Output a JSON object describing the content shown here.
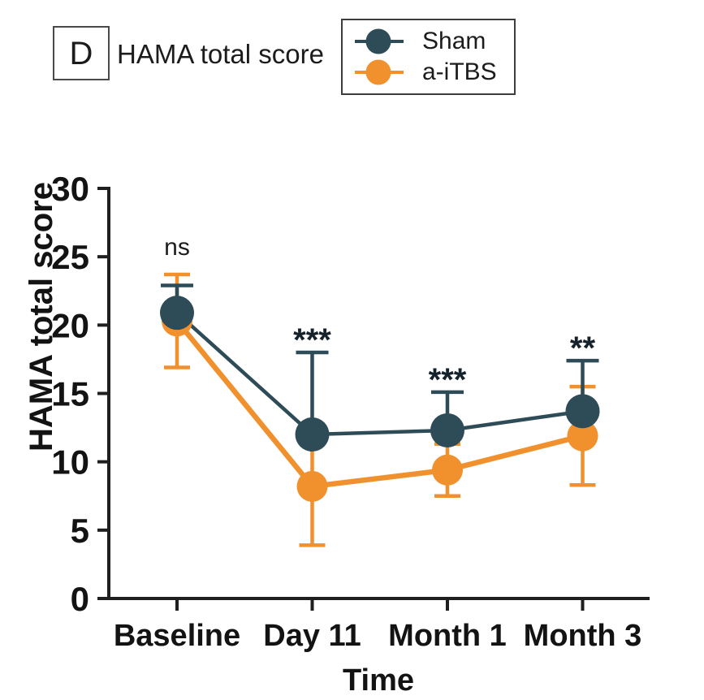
{
  "panel": {
    "label": "D",
    "title": "HAMA total score"
  },
  "legend": {
    "position": "top-right",
    "items": [
      {
        "name": "Sham",
        "color": "#2E4C58"
      },
      {
        "name": "a-iTBS",
        "color": "#F0912E"
      }
    ]
  },
  "colors": {
    "sham": "#2E4C58",
    "aitbs": "#F0912E",
    "axis": "#1f1f1f",
    "text": "#131313"
  },
  "chart_data": {
    "type": "line",
    "title": "HAMA total score",
    "xlabel": "Time",
    "ylabel": "HAMA  total score",
    "categories": [
      "Baseline",
      "Day 11",
      "Month 1",
      "Month 3"
    ],
    "yticks": [
      0,
      5,
      10,
      15,
      20,
      25,
      30
    ],
    "ylim": [
      0,
      30
    ],
    "grid": false,
    "legend_position": "top",
    "series": [
      {
        "name": "Sham",
        "color": "#2E4C58",
        "values": [
          20.9,
          12.0,
          12.3,
          13.7
        ],
        "err_up": [
          2.0,
          6.0,
          2.8,
          3.7
        ],
        "error_style": "upper-only",
        "marker": "circle"
      },
      {
        "name": "a-iTBS",
        "color": "#F0912E",
        "values": [
          20.3,
          8.2,
          9.4,
          11.9
        ],
        "err": [
          3.4,
          4.3,
          1.9,
          3.6
        ],
        "error_style": "symmetric",
        "marker": "circle"
      }
    ],
    "annotations": [
      {
        "category": "Baseline",
        "label": "ns"
      },
      {
        "category": "Day 11",
        "label": "***"
      },
      {
        "category": "Month 1",
        "label": "***"
      },
      {
        "category": "Month 3",
        "label": "**"
      }
    ]
  }
}
